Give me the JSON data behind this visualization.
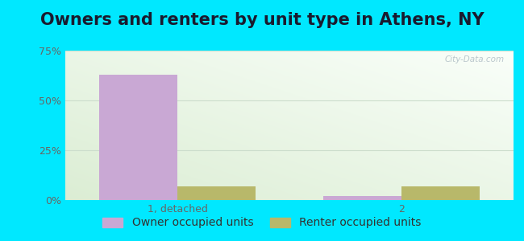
{
  "title": "Owners and renters by unit type in Athens, NY",
  "categories": [
    "1, detached",
    "2"
  ],
  "owner_values": [
    63,
    2
  ],
  "renter_values": [
    7,
    7
  ],
  "owner_color": "#c9a8d4",
  "renter_color": "#b8b86a",
  "owner_label": "Owner occupied units",
  "renter_label": "Renter occupied units",
  "ylim": [
    0,
    75
  ],
  "yticks": [
    0,
    25,
    50,
    75
  ],
  "ytick_labels": [
    "0%",
    "25%",
    "50%",
    "75%"
  ],
  "bar_width": 0.35,
  "outer_bg": "#00e8ff",
  "watermark": "City-Data.com",
  "title_fontsize": 15,
  "tick_fontsize": 9,
  "legend_fontsize": 10,
  "grid_color": "#ccddcc",
  "tick_color": "#666666"
}
